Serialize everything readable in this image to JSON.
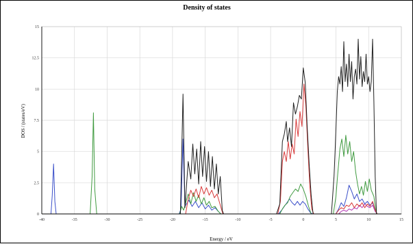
{
  "chart_data": {
    "type": "line",
    "title": "Density of states",
    "xlabel": "Energy / eV",
    "ylabel": "DOS / (states/eV)",
    "xlim": [
      -40,
      15
    ],
    "ylim": [
      0,
      15
    ],
    "grid": true,
    "x_ticks": [
      "-40",
      "-35",
      "-30",
      "-25",
      "-20",
      "-15",
      "-10",
      "-5",
      "0",
      "5",
      "10",
      "15"
    ],
    "y_ticks": [
      "0",
      "2.5",
      "5",
      "7.5",
      "10",
      "12.5",
      "15"
    ],
    "series": [
      {
        "color": "#1f1f1f",
        "points": [
          [
            -40,
            0
          ],
          [
            -18.8,
            0
          ],
          [
            -18.4,
            9.6
          ],
          [
            -18.1,
            0.5
          ],
          [
            -17.6,
            4.2
          ],
          [
            -17.2,
            2.8
          ],
          [
            -16.9,
            5.6
          ],
          [
            -16.6,
            3.2
          ],
          [
            -16.3,
            5.2
          ],
          [
            -16.0,
            2.4
          ],
          [
            -15.7,
            5.8
          ],
          [
            -15.4,
            3.0
          ],
          [
            -15.1,
            5.4
          ],
          [
            -14.8,
            2.6
          ],
          [
            -14.5,
            5.0
          ],
          [
            -14.2,
            2.2
          ],
          [
            -13.9,
            4.6
          ],
          [
            -13.6,
            2.0
          ],
          [
            -13.3,
            4.0
          ],
          [
            -13.0,
            1.6
          ],
          [
            -12.7,
            3.0
          ],
          [
            -12.4,
            0.3
          ],
          [
            -12.2,
            0
          ],
          [
            -4.1,
            0
          ],
          [
            -3.6,
            0.8
          ],
          [
            -3.2,
            5.8
          ],
          [
            -2.9,
            6.4
          ],
          [
            -2.6,
            7.4
          ],
          [
            -2.4,
            5.8
          ],
          [
            -2.1,
            6.9
          ],
          [
            -1.8,
            5.4
          ],
          [
            -1.5,
            8.9
          ],
          [
            -1.2,
            8.0
          ],
          [
            -0.9,
            8.6
          ],
          [
            -0.6,
            9.5
          ],
          [
            -0.3,
            9.2
          ],
          [
            0.0,
            11.7
          ],
          [
            0.3,
            10.5
          ],
          [
            0.6,
            7.0
          ],
          [
            0.9,
            4.0
          ],
          [
            1.2,
            1.5
          ],
          [
            1.5,
            0
          ],
          [
            4.3,
            0
          ],
          [
            4.7,
            3.0
          ],
          [
            4.9,
            5.5
          ],
          [
            5.2,
            9.8
          ],
          [
            5.4,
            11.0
          ],
          [
            5.6,
            10.4
          ],
          [
            5.8,
            11.8
          ],
          [
            6.0,
            9.8
          ],
          [
            6.2,
            13.8
          ],
          [
            6.4,
            10.6
          ],
          [
            6.6,
            12.0
          ],
          [
            6.8,
            10.2
          ],
          [
            7.0,
            12.8
          ],
          [
            7.2,
            10.6
          ],
          [
            7.4,
            12.2
          ],
          [
            7.6,
            9.2
          ],
          [
            7.8,
            11.0
          ],
          [
            8.0,
            11.6
          ],
          [
            8.2,
            10.4
          ],
          [
            8.4,
            14.0
          ],
          [
            8.6,
            10.8
          ],
          [
            8.8,
            12.6
          ],
          [
            9.0,
            10.2
          ],
          [
            9.2,
            11.4
          ],
          [
            9.4,
            10.6
          ],
          [
            9.6,
            12.8
          ],
          [
            9.8,
            10.4
          ],
          [
            10.0,
            11.0
          ],
          [
            10.2,
            9.8
          ],
          [
            10.4,
            10.6
          ],
          [
            10.6,
            14.0
          ],
          [
            10.8,
            9.0
          ],
          [
            11.0,
            3.0
          ],
          [
            11.2,
            0
          ],
          [
            15,
            0
          ]
        ]
      },
      {
        "color": "#d83a3a",
        "points": [
          [
            -40,
            0
          ],
          [
            -18.0,
            0
          ],
          [
            -17.6,
            1.2
          ],
          [
            -17.2,
            1.9
          ],
          [
            -16.8,
            1.4
          ],
          [
            -16.4,
            2.0
          ],
          [
            -16.0,
            1.3
          ],
          [
            -15.6,
            2.2
          ],
          [
            -15.2,
            1.6
          ],
          [
            -14.8,
            2.1
          ],
          [
            -14.4,
            1.5
          ],
          [
            -14.0,
            1.9
          ],
          [
            -13.6,
            1.3
          ],
          [
            -13.2,
            1.6
          ],
          [
            -12.8,
            0.9
          ],
          [
            -12.3,
            0
          ],
          [
            -3.9,
            0
          ],
          [
            -3.5,
            1.0
          ],
          [
            -3.2,
            4.2
          ],
          [
            -2.9,
            5.0
          ],
          [
            -2.6,
            4.2
          ],
          [
            -2.3,
            5.8
          ],
          [
            -2.0,
            4.4
          ],
          [
            -1.7,
            5.6
          ],
          [
            -1.4,
            4.8
          ],
          [
            -1.1,
            7.6
          ],
          [
            -0.8,
            6.2
          ],
          [
            -0.5,
            8.2
          ],
          [
            -0.2,
            7.0
          ],
          [
            0.1,
            10.4
          ],
          [
            0.4,
            8.6
          ],
          [
            0.7,
            5.2
          ],
          [
            1.0,
            2.2
          ],
          [
            1.3,
            0.4
          ],
          [
            1.6,
            0
          ],
          [
            5.0,
            0
          ],
          [
            5.4,
            0.3
          ],
          [
            5.8,
            0.5
          ],
          [
            6.2,
            0.4
          ],
          [
            6.6,
            0.7
          ],
          [
            7.0,
            0.6
          ],
          [
            7.4,
            0.9
          ],
          [
            7.8,
            0.5
          ],
          [
            8.2,
            0.8
          ],
          [
            8.6,
            0.6
          ],
          [
            9.0,
            0.9
          ],
          [
            9.4,
            0.5
          ],
          [
            9.8,
            0.8
          ],
          [
            10.2,
            0.6
          ],
          [
            10.6,
            1.0
          ],
          [
            11.0,
            0.3
          ],
          [
            11.3,
            0
          ],
          [
            15,
            0
          ]
        ]
      },
      {
        "color": "#3f9a3f",
        "points": [
          [
            -40,
            0
          ],
          [
            -32.6,
            0
          ],
          [
            -32.3,
            3.0
          ],
          [
            -32.1,
            8.1
          ],
          [
            -31.9,
            2.0
          ],
          [
            -31.6,
            0
          ],
          [
            -18.9,
            0
          ],
          [
            -18.6,
            0.6
          ],
          [
            -18.3,
            0.3
          ],
          [
            -17.6,
            1.6
          ],
          [
            -17.2,
            0.8
          ],
          [
            -16.8,
            1.7
          ],
          [
            -16.4,
            1.0
          ],
          [
            -16.0,
            1.5
          ],
          [
            -15.6,
            0.8
          ],
          [
            -15.2,
            1.3
          ],
          [
            -14.8,
            0.7
          ],
          [
            -14.4,
            1.0
          ],
          [
            -14.0,
            0.5
          ],
          [
            -13.5,
            0.6
          ],
          [
            -13.0,
            0.2
          ],
          [
            -12.6,
            0
          ],
          [
            -3.6,
            0
          ],
          [
            -3.2,
            0.4
          ],
          [
            -2.8,
            0.7
          ],
          [
            -2.4,
            0.9
          ],
          [
            -2.0,
            1.4
          ],
          [
            -1.6,
            1.7
          ],
          [
            -1.2,
            2.0
          ],
          [
            -0.8,
            1.8
          ],
          [
            -0.4,
            2.4
          ],
          [
            0.0,
            2.0
          ],
          [
            0.4,
            1.4
          ],
          [
            0.8,
            0.6
          ],
          [
            1.2,
            0
          ],
          [
            4.6,
            0
          ],
          [
            5.0,
            1.4
          ],
          [
            5.3,
            3.4
          ],
          [
            5.6,
            5.2
          ],
          [
            5.9,
            6.0
          ],
          [
            6.2,
            4.6
          ],
          [
            6.5,
            6.3
          ],
          [
            6.8,
            4.8
          ],
          [
            7.1,
            5.8
          ],
          [
            7.4,
            4.2
          ],
          [
            7.7,
            5.0
          ],
          [
            8.0,
            3.4
          ],
          [
            8.3,
            2.4
          ],
          [
            8.6,
            1.6
          ],
          [
            8.9,
            2.2
          ],
          [
            9.2,
            1.5
          ],
          [
            9.5,
            2.6
          ],
          [
            9.8,
            1.8
          ],
          [
            10.1,
            2.8
          ],
          [
            10.4,
            1.9
          ],
          [
            10.8,
            1.4
          ],
          [
            11.1,
            0.2
          ],
          [
            11.3,
            0
          ],
          [
            15,
            0
          ]
        ]
      },
      {
        "color": "#3a4fc9",
        "points": [
          [
            -40,
            0
          ],
          [
            -38.6,
            0
          ],
          [
            -38.4,
            1.5
          ],
          [
            -38.2,
            4.0
          ],
          [
            -38.0,
            1.0
          ],
          [
            -37.8,
            0
          ],
          [
            -19.0,
            0
          ],
          [
            -18.7,
            0.4
          ],
          [
            -18.4,
            6.0
          ],
          [
            -18.1,
            0.6
          ],
          [
            -17.5,
            1.1
          ],
          [
            -17.0,
            0.6
          ],
          [
            -16.5,
            1.0
          ],
          [
            -16.0,
            0.5
          ],
          [
            -15.5,
            0.9
          ],
          [
            -15.0,
            0.4
          ],
          [
            -14.5,
            0.7
          ],
          [
            -14.0,
            0.3
          ],
          [
            -13.5,
            0.5
          ],
          [
            -13.0,
            0.2
          ],
          [
            -12.6,
            0
          ],
          [
            -3.8,
            0
          ],
          [
            -3.3,
            0.3
          ],
          [
            -2.9,
            0.6
          ],
          [
            -2.5,
            0.9
          ],
          [
            -2.1,
            1.2
          ],
          [
            -1.7,
            0.9
          ],
          [
            -1.3,
            0.7
          ],
          [
            -0.9,
            1.0
          ],
          [
            -0.5,
            0.7
          ],
          [
            -0.1,
            1.0
          ],
          [
            0.3,
            0.8
          ],
          [
            0.7,
            0.4
          ],
          [
            1.1,
            0.1
          ],
          [
            1.4,
            0
          ],
          [
            5.0,
            0
          ],
          [
            5.4,
            0.4
          ],
          [
            5.8,
            0.9
          ],
          [
            6.2,
            0.6
          ],
          [
            6.6,
            1.3
          ],
          [
            7.0,
            2.3
          ],
          [
            7.4,
            1.8
          ],
          [
            7.8,
            1.2
          ],
          [
            8.2,
            1.6
          ],
          [
            8.6,
            1.0
          ],
          [
            9.0,
            1.2
          ],
          [
            9.4,
            0.8
          ],
          [
            9.8,
            1.0
          ],
          [
            10.2,
            0.7
          ],
          [
            10.6,
            0.9
          ],
          [
            11.0,
            0.3
          ],
          [
            11.3,
            0
          ],
          [
            15,
            0
          ]
        ]
      },
      {
        "color": "#b43ab4",
        "points": [
          [
            -40,
            0
          ],
          [
            5.4,
            0
          ],
          [
            5.8,
            0.2
          ],
          [
            6.2,
            0.3
          ],
          [
            6.6,
            0.2
          ],
          [
            7.0,
            0.4
          ],
          [
            7.4,
            0.3
          ],
          [
            7.8,
            0.5
          ],
          [
            8.2,
            0.4
          ],
          [
            8.6,
            0.7
          ],
          [
            9.0,
            0.5
          ],
          [
            9.4,
            0.8
          ],
          [
            9.8,
            0.6
          ],
          [
            10.2,
            0.5
          ],
          [
            10.6,
            0.7
          ],
          [
            11.0,
            0.2
          ],
          [
            11.3,
            0
          ],
          [
            15,
            0
          ]
        ]
      }
    ]
  }
}
